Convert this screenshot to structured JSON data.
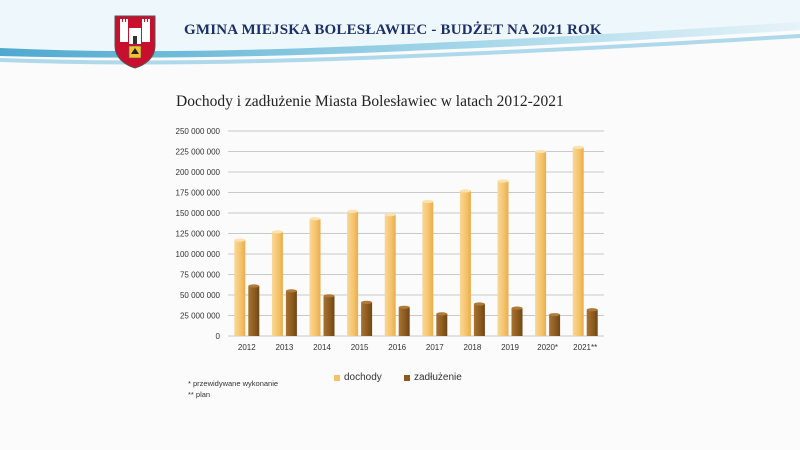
{
  "header": {
    "title": "GMINA MIEJSKA BOLESŁAWIEC - BUDŻET NA 2021 ROK",
    "crest_icon": "city-coat-of-arms-icon"
  },
  "footnotes": {
    "estimated": "* przewidywane wykonanie",
    "plan": "** plan"
  },
  "colors": {
    "income": "#f5c26a",
    "debt": "#8a5a1e",
    "header_blue": "#7fc4dc",
    "title_navy": "#1c2f66"
  },
  "chart_data": {
    "type": "bar",
    "title": "Dochody i zadłużenie Miasta Bolesławiec w latach 2012-2021",
    "categories": [
      "2012",
      "2013",
      "2014",
      "2015",
      "2016",
      "2017",
      "2018",
      "2019",
      "2020*",
      "2021**"
    ],
    "series": [
      {
        "name": "dochody",
        "color": "#f5c26a",
        "values": [
          117000000,
          127000000,
          143000000,
          152000000,
          148000000,
          164000000,
          177000000,
          189000000,
          225000000,
          230000000
        ]
      },
      {
        "name": "zadłużenie",
        "color": "#8a5a1e",
        "values": [
          61000000,
          55000000,
          49000000,
          41000000,
          35000000,
          27000000,
          39000000,
          34000000,
          26000000,
          32000000
        ]
      }
    ],
    "y_ticks": [
      "0",
      "25 000 000",
      "50 000 000",
      "75 000 000",
      "100 000 000",
      "125 000 000",
      "150 000 000",
      "175 000 000",
      "200 000 000",
      "225 000 000",
      "250 000 000"
    ],
    "ylim": [
      0,
      250000000
    ],
    "grid": true,
    "legend_position": "bottom-center"
  }
}
